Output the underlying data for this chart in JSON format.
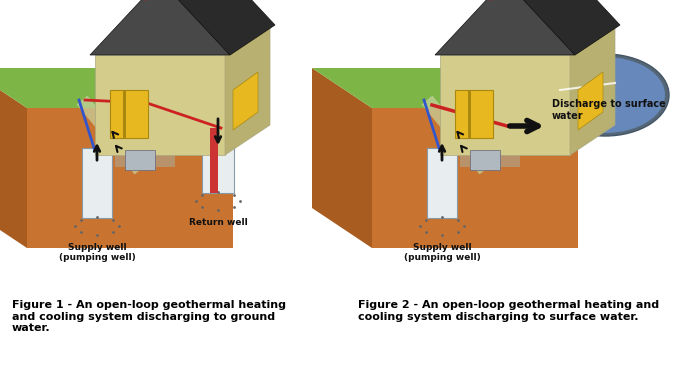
{
  "fig_width": 6.93,
  "fig_height": 3.83,
  "dpi": 100,
  "bg_color": "#ffffff",
  "caption1_lines": [
    "Figure 1 - An open-loop geothermal heating",
    "and cooling system discharging to ground",
    "water."
  ],
  "caption2_lines": [
    "Figure 2 - An open-loop geothermal heating and",
    "cooling system discharging to surface water."
  ],
  "caption_fontsize": 8.0,
  "caption_fontweight": "bold",
  "ground_front": "#c87430",
  "ground_left": "#a85c20",
  "ground_top_brown": "#b86828",
  "grass_top": "#7db547",
  "grass_left": "#6a9e3a",
  "house_wall": "#d4cc8a",
  "house_wall_dark": "#b8b070",
  "house_roof_front": "#484848",
  "house_roof_side": "#2a2a2a",
  "pipe_red": "#cc2222",
  "pipe_blue": "#3355cc",
  "well_white": "#e8eef0",
  "well_blue_tint": "#ccd8e8",
  "arrow_color": "#111111",
  "label_fontsize": 6.5,
  "pond_water": "#6688bb",
  "pond_edge": "#8899aa"
}
